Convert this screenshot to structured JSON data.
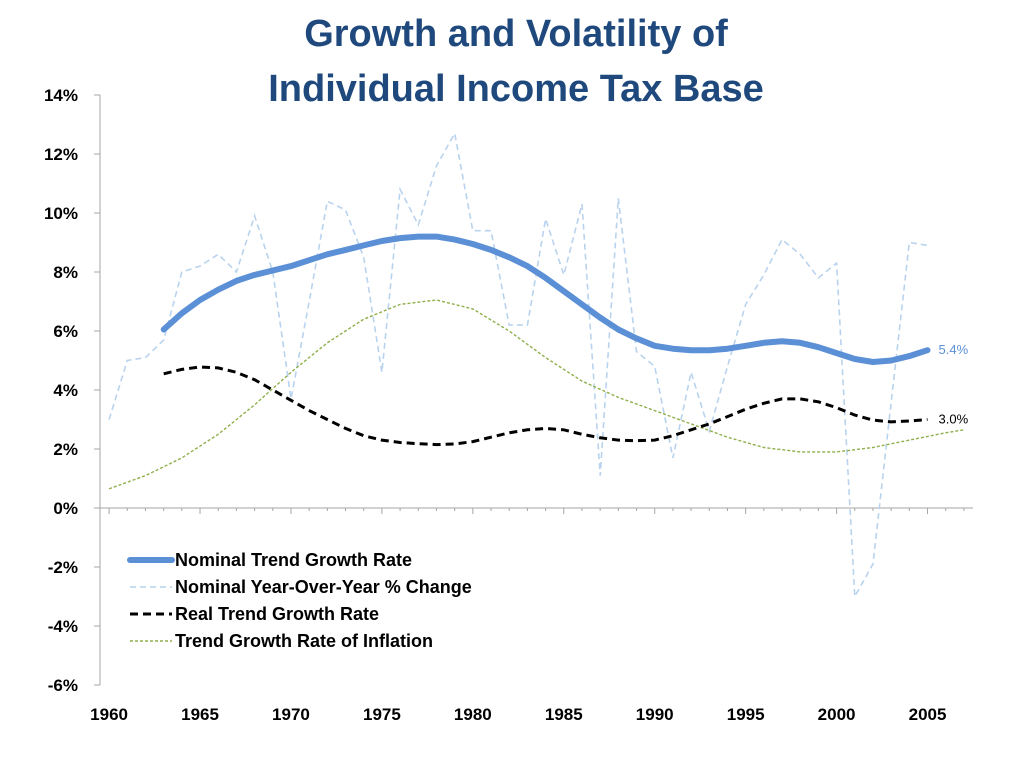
{
  "chart_data": {
    "type": "line",
    "title_lines": [
      "Growth and Volatility of",
      "Individual Income Tax Base"
    ],
    "xlabel": "",
    "ylabel": "",
    "x_ticks": [
      "1960",
      "1965",
      "1970",
      "1975",
      "1980",
      "1985",
      "1990",
      "1995",
      "2000",
      "2005"
    ],
    "y_ticks": [
      "14%",
      "12%",
      "10%",
      "8%",
      "6%",
      "4%",
      "2%",
      "0%",
      "-2%",
      "-4%",
      "-6%"
    ],
    "xlim": [
      1959.5,
      2007.5
    ],
    "ylim": [
      -6,
      14
    ],
    "grid": false,
    "legend_position": "bottom-left",
    "series": [
      {
        "name": "Nominal Trend Growth Rate",
        "color": "#5b8fd6",
        "style": "thick-solid",
        "end_label": "5.4%",
        "x": [
          1963,
          1964,
          1965,
          1966,
          1967,
          1968,
          1969,
          1970,
          1971,
          1972,
          1973,
          1974,
          1975,
          1976,
          1977,
          1978,
          1979,
          1980,
          1981,
          1982,
          1983,
          1984,
          1985,
          1986,
          1987,
          1988,
          1989,
          1990,
          1991,
          1992,
          1993,
          1994,
          1995,
          1996,
          1997,
          1998,
          1999,
          2000,
          2001,
          2002,
          2003,
          2004,
          2005
        ],
        "y": [
          6.05,
          6.6,
          7.05,
          7.4,
          7.7,
          7.9,
          8.05,
          8.2,
          8.4,
          8.6,
          8.75,
          8.9,
          9.05,
          9.15,
          9.2,
          9.2,
          9.1,
          8.95,
          8.75,
          8.5,
          8.2,
          7.8,
          7.35,
          6.9,
          6.45,
          6.05,
          5.75,
          5.5,
          5.4,
          5.35,
          5.35,
          5.4,
          5.5,
          5.6,
          5.65,
          5.6,
          5.45,
          5.25,
          5.05,
          4.95,
          5.0,
          5.15,
          5.35
        ]
      },
      {
        "name": "Nominal Year-Over-Year % Change",
        "color": "#b9d3ee",
        "style": "dashed",
        "x": [
          1960,
          1961,
          1962,
          1963,
          1964,
          1965,
          1966,
          1967,
          1968,
          1969,
          1970,
          1971,
          1972,
          1973,
          1974,
          1975,
          1976,
          1977,
          1978,
          1979,
          1980,
          1981,
          1982,
          1983,
          1984,
          1985,
          1986,
          1987,
          1988,
          1989,
          1990,
          1991,
          1992,
          1993,
          1994,
          1995,
          1996,
          1997,
          1998,
          1999,
          2000,
          2001,
          2002,
          2003,
          2004,
          2005
        ],
        "y": [
          3.0,
          5.0,
          5.1,
          5.7,
          8.0,
          8.2,
          8.6,
          8.0,
          9.9,
          8.0,
          3.7,
          7.0,
          10.4,
          10.1,
          8.5,
          4.6,
          10.8,
          9.6,
          11.6,
          12.7,
          9.4,
          9.4,
          6.2,
          6.2,
          9.8,
          7.9,
          10.3,
          1.1,
          10.5,
          5.3,
          4.8,
          1.7,
          4.6,
          2.6,
          4.8,
          6.9,
          7.9,
          9.1,
          8.6,
          7.8,
          8.3,
          -3.0,
          -1.9,
          3.6,
          9.0,
          8.9
        ]
      },
      {
        "name": "Real Trend Growth Rate",
        "color": "#000000",
        "style": "dashed",
        "end_label": "3.0%",
        "x": [
          1963,
          1964,
          1965,
          1966,
          1967,
          1968,
          1969,
          1970,
          1971,
          1972,
          1973,
          1974,
          1975,
          1976,
          1977,
          1978,
          1979,
          1980,
          1981,
          1982,
          1983,
          1984,
          1985,
          1986,
          1987,
          1988,
          1989,
          1990,
          1991,
          1992,
          1993,
          1994,
          1995,
          1996,
          1997,
          1998,
          1999,
          2000,
          2001,
          2002,
          2003,
          2004,
          2005
        ],
        "y": [
          4.55,
          4.7,
          4.78,
          4.75,
          4.6,
          4.35,
          4.0,
          3.65,
          3.3,
          3.0,
          2.7,
          2.45,
          2.3,
          2.22,
          2.18,
          2.15,
          2.17,
          2.25,
          2.4,
          2.55,
          2.65,
          2.7,
          2.65,
          2.5,
          2.38,
          2.3,
          2.28,
          2.3,
          2.45,
          2.65,
          2.85,
          3.1,
          3.35,
          3.55,
          3.7,
          3.7,
          3.6,
          3.4,
          3.15,
          2.98,
          2.92,
          2.95,
          3.0
        ]
      },
      {
        "name": "Trend Growth Rate of Inflation",
        "color": "#8faf4a",
        "style": "dotted",
        "x": [
          1960,
          1962,
          1964,
          1966,
          1968,
          1970,
          1972,
          1974,
          1976,
          1978,
          1980,
          1982,
          1984,
          1986,
          1988,
          1990,
          1992,
          1994,
          1996,
          1998,
          2000,
          2002,
          2004,
          2006,
          2007
        ],
        "y": [
          0.65,
          1.1,
          1.7,
          2.5,
          3.5,
          4.6,
          5.6,
          6.4,
          6.9,
          7.05,
          6.75,
          6.0,
          5.1,
          4.3,
          3.75,
          3.3,
          2.85,
          2.4,
          2.05,
          1.9,
          1.9,
          2.05,
          2.3,
          2.55,
          2.65
        ]
      }
    ]
  }
}
